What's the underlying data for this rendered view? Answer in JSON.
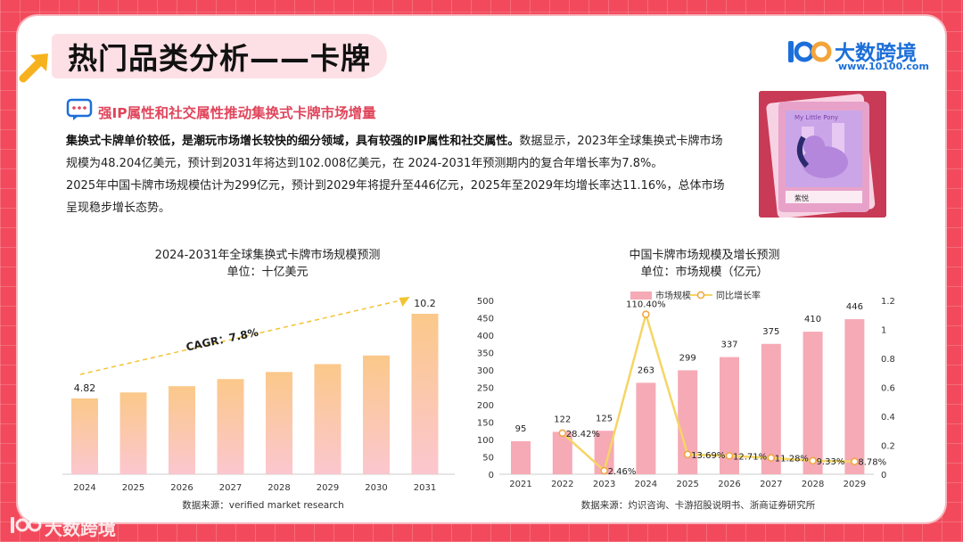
{
  "title": "热门品类分析——卡牌",
  "brand": {
    "name": "大数跨境",
    "url": "www.10100.com",
    "logo_text": "100"
  },
  "subtitle": "强IP属性和社交属性推动集换式卡牌市场增量",
  "body": {
    "p1_bold": "集换式卡牌单价较低，是潮玩市场增长较快的细分领域，具有较强的IP属性和社交属性。",
    "p1_rest": "数据显示，2023年全球集换式卡牌市场规模为48.204亿美元，预计到2031年将达到102.008亿美元，在 2024-2031年预测期内的复合年增长率为7.8%。",
    "p2": "2025年中国卡牌市场规模估计为299亿元，预计到2029年将提升至446亿元，2025年至2029年均增长率达11.16%，总体市场呈现稳步增长态势。"
  },
  "image": {
    "label": "My Little Pony",
    "caption": "紫悦"
  },
  "colors": {
    "accent": "#e0455b",
    "brand": "#1c6fd9",
    "bar_pink": "#f5aab5",
    "line_yellow": "#f5d565"
  },
  "chart_data": [
    {
      "type": "bar",
      "title": "2024-2031年全球集换式卡牌市场规模预测",
      "subtitle": "单位：十亿美元",
      "categories": [
        "2024",
        "2025",
        "2026",
        "2027",
        "2028",
        "2029",
        "2030",
        "2031"
      ],
      "values": [
        4.82,
        5.2,
        5.6,
        6.05,
        6.5,
        7.0,
        7.55,
        10.2
      ],
      "data_labels": [
        "4.82",
        "",
        "",
        "",
        "",
        "",
        "",
        "10.2"
      ],
      "annotation": "CAGR：7.8%",
      "source": "数据来源：verified market research",
      "ylim": [
        0,
        10.2
      ]
    },
    {
      "type": "bar+line",
      "title": "中国卡牌市场规模及增长预测",
      "subtitle": "单位：市场规模（亿元）",
      "categories": [
        "2021",
        "2022",
        "2023",
        "2024",
        "2025",
        "2026",
        "2027",
        "2028",
        "2029"
      ],
      "series": [
        {
          "name": "市场规模",
          "type": "bar",
          "axis": "left",
          "values": [
            95,
            122,
            125,
            263,
            299,
            337,
            375,
            410,
            446
          ],
          "labels": [
            "95",
            "122",
            "125",
            "263",
            "299",
            "337",
            "375",
            "410",
            "446"
          ]
        },
        {
          "name": "同比增长率",
          "type": "line",
          "axis": "right",
          "values": [
            null,
            0.2842,
            0.0246,
            1.104,
            0.1369,
            0.1271,
            0.1128,
            0.0933,
            0.0878
          ],
          "labels": [
            "",
            "28.42%",
            "2.46%",
            "110.40%",
            "13.69%",
            "12.71%",
            "11.28%",
            "9.33%",
            "8.78%"
          ]
        }
      ],
      "y_left": {
        "min": 0,
        "max": 500,
        "ticks": [
          "0",
          "50",
          "100",
          "150",
          "200",
          "250",
          "300",
          "350",
          "400",
          "450",
          "500"
        ]
      },
      "y_right": {
        "min": 0,
        "max": 1.2,
        "ticks": [
          "0",
          "0.2",
          "0.4",
          "0.6",
          "0.8",
          "1",
          "1.2"
        ]
      },
      "source": "数据来源：灼识咨询、卡游招股说明书、浙商证券研究所"
    }
  ]
}
